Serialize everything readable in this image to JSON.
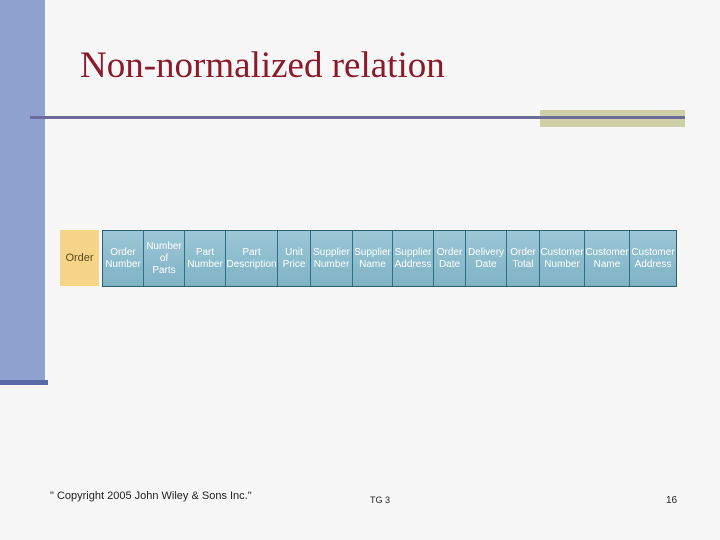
{
  "slide": {
    "title": "Non-normalized relation"
  },
  "relation": {
    "name": "Order",
    "attributes": [
      "Order\nNumber",
      "Number\nof\nParts",
      "Part\nNumber",
      "Part\nDescription",
      "Unit\nPrice",
      "Supplier\nNumber",
      "Supplier\nName",
      "Supplier\nAddress",
      "Order\nDate",
      "Delivery\nDate",
      "Order\nTotal",
      "Customer\nNumber",
      "Customer\nName",
      "Customer\nAddress"
    ]
  },
  "footer": {
    "copyright": "\" Copyright 2005 John Wiley & Sons Inc.\"",
    "code": "TG 3",
    "page_number": "16"
  },
  "colors": {
    "title": "#8b1a2a",
    "left_bar": "#8fa1cf",
    "relation_name_bg": "#f6d488",
    "attribute_bg": "#8fbfd0"
  }
}
